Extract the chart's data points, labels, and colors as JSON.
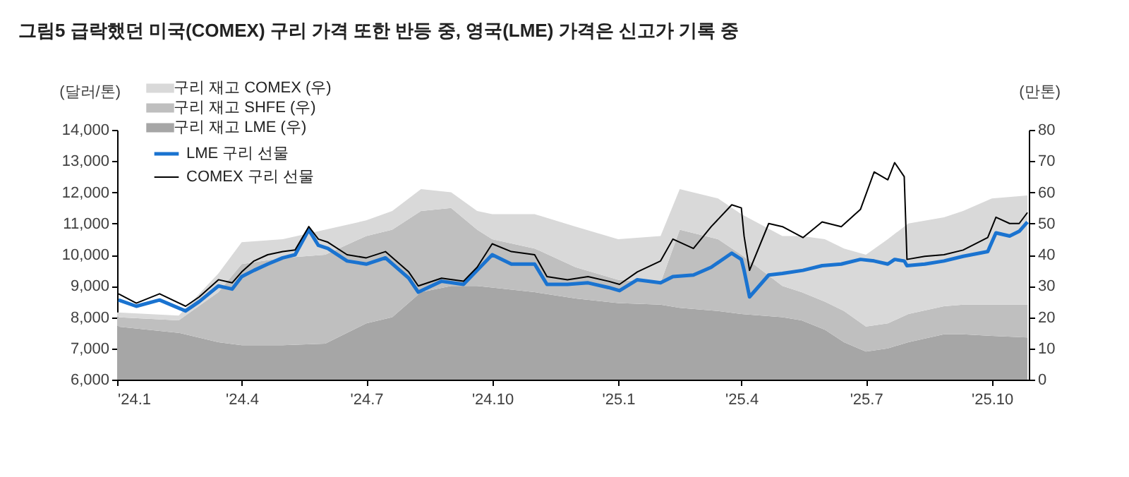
{
  "chart_data": {
    "type": "area",
    "title": "그림5  급락했던 미국(COMEX) 구리 가격 또한 반등 중, 영국(LME) 가격은 신고가 기록 중",
    "ylabel": "(달러/톤)",
    "y2label": "(만톤)",
    "stacked": true,
    "legend": "top left",
    "x": [
      "2024-01-01",
      "2024-02-15",
      "2024-03-15",
      "2024-04-01",
      "2024-05-01",
      "2024-06-01",
      "2024-07-01",
      "2024-07-20",
      "2024-08-10",
      "2024-09-01",
      "2024-09-20",
      "2024-10-01",
      "2024-11-01",
      "2024-12-01",
      "2025-01-01",
      "2025-02-01",
      "2025-02-15",
      "2025-03-15",
      "2025-04-01",
      "2025-05-01",
      "2025-05-15",
      "2025-06-01",
      "2025-06-15",
      "2025-07-01",
      "2025-07-17",
      "2025-08-01",
      "2025-08-27",
      "2025-09-10",
      "2025-10-01",
      "2025-10-27"
    ],
    "xlim": [
      "2024-01-01",
      "2025-10-28"
    ],
    "xticks": [
      {
        "value": "2024-01-01",
        "label": "'24.1"
      },
      {
        "value": "2024-04-01",
        "label": "'24.4"
      },
      {
        "value": "2024-07-01",
        "label": "'24.7"
      },
      {
        "value": "2024-10-01",
        "label": "'24.10"
      },
      {
        "value": "2025-01-01",
        "label": "'25.1"
      },
      {
        "value": "2025-04-01",
        "label": "'25.4"
      },
      {
        "value": "2025-07-01",
        "label": "'25.7"
      },
      {
        "value": "2025-10-01",
        "label": "'25.10"
      }
    ],
    "ylim": [
      6000,
      14000
    ],
    "yticks": [
      {
        "value": 6000,
        "label": "6,000"
      },
      {
        "value": 7000,
        "label": "7,000"
      },
      {
        "value": 8000,
        "label": "8,000"
      },
      {
        "value": 9000,
        "label": "9,000"
      },
      {
        "value": 10000,
        "label": "10,000"
      },
      {
        "value": 11000,
        "label": "11,000"
      },
      {
        "value": 12000,
        "label": "12,000"
      },
      {
        "value": 13000,
        "label": "13,000"
      },
      {
        "value": 14000,
        "label": "14,000"
      }
    ],
    "y2lim": [
      0,
      80
    ],
    "y2ticks": [
      0,
      10,
      20,
      30,
      40,
      50,
      60,
      70,
      80
    ],
    "series": [
      {
        "name": "구리 재고 LME (우)",
        "type": "area",
        "axis": "y2",
        "color": "#a6a6a6",
        "values": [
          17,
          15,
          12,
          11,
          11,
          11.5,
          18,
          20,
          28,
          30,
          30,
          29.5,
          28,
          26,
          24.5,
          24,
          23,
          22,
          21,
          20,
          19,
          16,
          12,
          9,
          10,
          12,
          14.5,
          14.5,
          14,
          13.5
        ]
      },
      {
        "name": "구리 재고 SHFE (우)",
        "type": "area",
        "axis": "y2",
        "color": "#bfbfbf",
        "values": [
          3,
          4,
          16,
          26,
          28,
          28.5,
          28,
          28,
          26,
          25,
          18,
          15.5,
          14,
          10,
          7.5,
          7,
          25,
          23,
          19,
          10,
          9,
          9,
          10,
          8,
          8,
          9,
          9,
          9.5,
          10,
          10.5
        ]
      },
      {
        "name": "구리 재고 COMEX (우)",
        "type": "area",
        "axis": "y2",
        "color": "#d9d9d9",
        "values": [
          1.5,
          1.5,
          6,
          7,
          6,
          8,
          5,
          6,
          7,
          5,
          6,
          8,
          11,
          13,
          13,
          15,
          13,
          13,
          13,
          16,
          18,
          20,
          20,
          23,
          27,
          29,
          28.5,
          30,
          34,
          35
        ]
      },
      {
        "name": "LME 구리 선물",
        "type": "line",
        "color": "#1a73d0",
        "x": [
          "2024-01-02",
          "2024-01-15",
          "2024-02-01",
          "2024-02-20",
          "2024-03-01",
          "2024-03-15",
          "2024-03-25",
          "2024-04-01",
          "2024-04-10",
          "2024-04-20",
          "2024-05-01",
          "2024-05-10",
          "2024-05-20",
          "2024-05-27",
          "2024-06-03",
          "2024-06-17",
          "2024-07-01",
          "2024-07-15",
          "2024-08-01",
          "2024-08-08",
          "2024-08-25",
          "2024-09-10",
          "2024-09-20",
          "2024-10-01",
          "2024-10-15",
          "2024-11-01",
          "2024-11-10",
          "2024-11-25",
          "2024-12-10",
          "2024-12-25",
          "2025-01-02",
          "2025-01-15",
          "2025-02-01",
          "2025-02-10",
          "2025-02-25",
          "2025-03-10",
          "2025-03-25",
          "2025-04-01",
          "2025-04-03",
          "2025-04-07",
          "2025-04-21",
          "2025-05-01",
          "2025-05-16",
          "2025-05-30",
          "2025-06-13",
          "2025-06-27",
          "2025-07-07",
          "2025-07-17",
          "2025-07-22",
          "2025-07-29",
          "2025-07-31",
          "2025-08-13",
          "2025-08-27",
          "2025-09-10",
          "2025-09-28",
          "2025-10-04",
          "2025-10-14",
          "2025-10-21",
          "2025-10-27"
        ],
        "values": [
          8550,
          8350,
          8550,
          8200,
          8500,
          9000,
          8900,
          9300,
          9500,
          9700,
          9900,
          10000,
          10800,
          10300,
          10200,
          9800,
          9700,
          9900,
          9250,
          8800,
          9150,
          9050,
          9500,
          10000,
          9700,
          9700,
          9050,
          9050,
          9100,
          8950,
          8850,
          9200,
          9100,
          9300,
          9350,
          9600,
          10050,
          9850,
          9500,
          8650,
          9350,
          9400,
          9500,
          9650,
          9700,
          9850,
          9800,
          9700,
          9850,
          9800,
          9650,
          9700,
          9800,
          9950,
          10100,
          10700,
          10600,
          10750,
          11050
        ]
      },
      {
        "name": "COMEX 구리 선물",
        "type": "line",
        "color": "#000000",
        "x": [
          "2024-01-02",
          "2024-01-15",
          "2024-02-01",
          "2024-02-20",
          "2024-03-01",
          "2024-03-15",
          "2024-03-25",
          "2024-04-01",
          "2024-04-10",
          "2024-04-20",
          "2024-05-01",
          "2024-05-10",
          "2024-05-20",
          "2024-05-27",
          "2024-06-03",
          "2024-06-17",
          "2024-07-01",
          "2024-07-15",
          "2024-08-01",
          "2024-08-08",
          "2024-08-25",
          "2024-09-10",
          "2024-09-20",
          "2024-10-01",
          "2024-10-15",
          "2024-11-01",
          "2024-11-10",
          "2024-11-25",
          "2024-12-10",
          "2024-12-25",
          "2025-01-02",
          "2025-01-15",
          "2025-02-01",
          "2025-02-10",
          "2025-02-25",
          "2025-03-10",
          "2025-03-25",
          "2025-04-01",
          "2025-04-03",
          "2025-04-07",
          "2025-04-21",
          "2025-05-01",
          "2025-05-16",
          "2025-05-30",
          "2025-06-13",
          "2025-06-27",
          "2025-07-07",
          "2025-07-17",
          "2025-07-22",
          "2025-07-29",
          "2025-07-31",
          "2025-08-13",
          "2025-08-27",
          "2025-09-10",
          "2025-09-28",
          "2025-10-04",
          "2025-10-14",
          "2025-10-21",
          "2025-10-27"
        ],
        "values": [
          8750,
          8450,
          8750,
          8350,
          8650,
          9200,
          9100,
          9450,
          9800,
          10000,
          10100,
          10150,
          10900,
          10500,
          10400,
          10000,
          9900,
          10100,
          9450,
          9000,
          9250,
          9150,
          9600,
          10350,
          10100,
          10000,
          9300,
          9200,
          9300,
          9150,
          9050,
          9450,
          9800,
          10500,
          10200,
          10900,
          11600,
          11500,
          10600,
          9500,
          11000,
          10900,
          10550,
          11050,
          10900,
          11450,
          12650,
          12400,
          12950,
          12500,
          9850,
          9950,
          10000,
          10150,
          10550,
          11200,
          11000,
          11000,
          11350
        ]
      }
    ]
  }
}
